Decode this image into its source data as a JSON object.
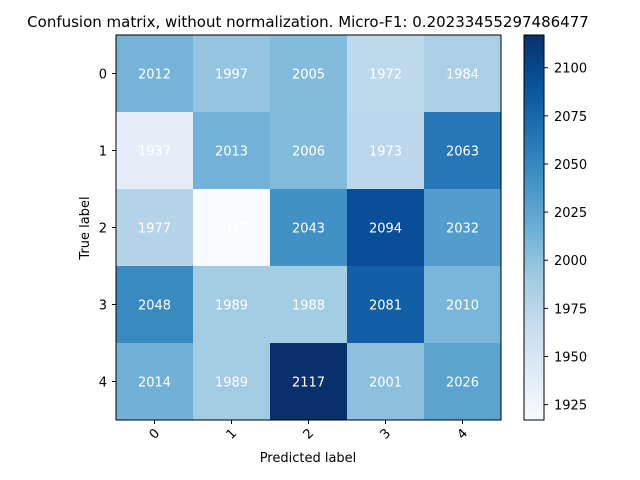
{
  "chart_data": {
    "type": "heatmap",
    "title": "Confusion matrix, without normalization. Micro-F1: 0.20233455297486477",
    "xlabel": "Predicted label",
    "ylabel": "True label",
    "x_tick_labels": [
      "0",
      "1",
      "2",
      "3",
      "4"
    ],
    "y_tick_labels": [
      "0",
      "1",
      "2",
      "3",
      "4"
    ],
    "matrix": [
      [
        2012,
        1997,
        2005,
        1972,
        1984
      ],
      [
        1937,
        2013,
        2006,
        1973,
        2063
      ],
      [
        1977,
        1917,
        2043,
        2094,
        2032
      ],
      [
        2048,
        1989,
        1988,
        2081,
        2010
      ],
      [
        2014,
        1989,
        2117,
        2001,
        2026
      ]
    ],
    "colormap": "Blues",
    "vmin": 1917,
    "vmax": 2117,
    "colorbar": {
      "ticks": [
        1925,
        1950,
        1975,
        2000,
        2025,
        2050,
        2075,
        2100
      ],
      "tick_labels": [
        "1925",
        "1950",
        "1975",
        "2000",
        "2025",
        "2050",
        "2075",
        "2100"
      ]
    }
  }
}
